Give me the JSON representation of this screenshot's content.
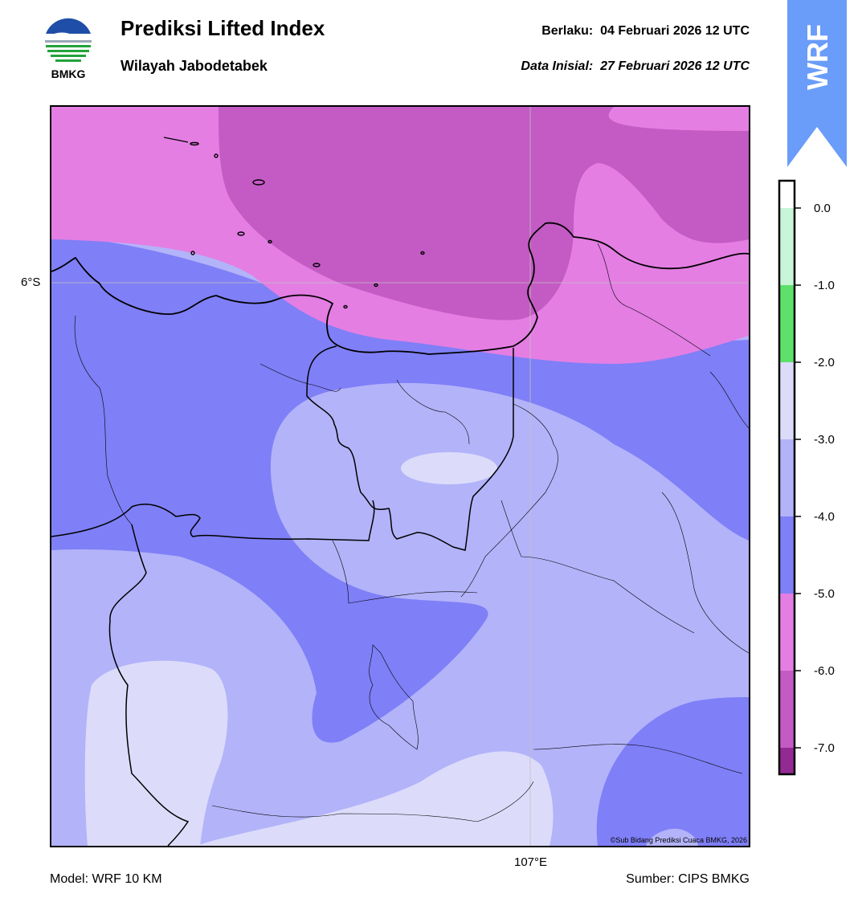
{
  "header": {
    "logo_text": "BMKG",
    "title": "Prediksi Lifted Index",
    "subtitle": "Wilayah Jabodetabek",
    "valid_label": "Berlaku:",
    "valid_value": "04 Februari 2026 12 UTC",
    "init_label": "Data Inisial:",
    "init_value": "27 Februari 2026 12 UTC"
  },
  "badge": {
    "text": "WRF",
    "color": "#6a9cf9"
  },
  "map": {
    "lat_label": "6°S",
    "lon_label": "107°E",
    "copyright": "©Sub Bidang Prediksi Cuaca BMKG, 2026"
  },
  "colorbar": {
    "ticks": [
      "0.0",
      "-1.0",
      "-2.0",
      "-3.0",
      "-4.0",
      "-5.0",
      "-6.0",
      "-7.0"
    ],
    "bands": [
      {
        "range": "> 0.0",
        "color": "#ffffff"
      },
      {
        "range": "-1.0 to 0.0",
        "color": "#c8f5d7"
      },
      {
        "range": "-2.0 to -1.0",
        "color": "#5ce06a"
      },
      {
        "range": "-3.0 to -2.0",
        "color": "#dcdcfa"
      },
      {
        "range": "-4.0 to -3.0",
        "color": "#b3b3fa"
      },
      {
        "range": "-5.0 to -4.0",
        "color": "#7f7ff7"
      },
      {
        "range": "-6.0 to -5.0",
        "color": "#e47ee3"
      },
      {
        "range": "-7.0 to -6.0",
        "color": "#c45ac4"
      },
      {
        "range": "< -7.0",
        "color": "#932993"
      }
    ]
  },
  "footer": {
    "model": "Model: WRF 10 KM",
    "source": "Sumber: CIPS BMKG"
  }
}
